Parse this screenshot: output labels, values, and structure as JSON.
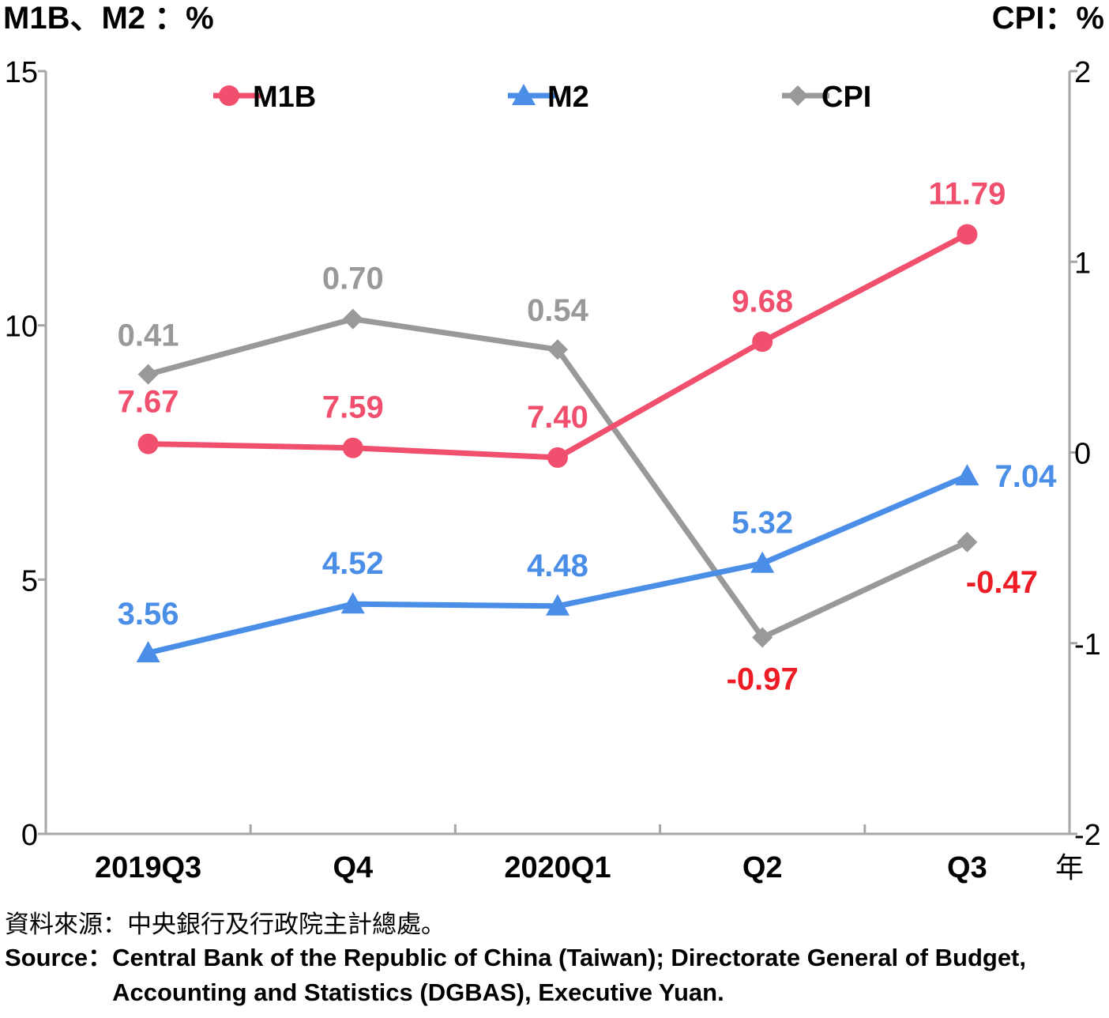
{
  "chart_data": {
    "type": "line",
    "left_axis_title": "M1B、M2 ：%",
    "right_axis_title": "CPI：%",
    "x_unit": "年",
    "categories": [
      "2019Q3",
      "Q4",
      "2020Q1",
      "Q2",
      "Q3"
    ],
    "left_axis": {
      "ylim": [
        0,
        15
      ],
      "ticks": [
        "0",
        "5",
        "10",
        "15"
      ]
    },
    "right_axis": {
      "ylim": [
        -2,
        2
      ],
      "ticks": [
        "-2",
        "-1",
        "0",
        "1",
        "2"
      ]
    },
    "grid": false,
    "legend_placement": "top",
    "series": [
      {
        "name": "M1B",
        "axis": "left",
        "marker": "circle",
        "color": "#f0506e",
        "values": [
          7.67,
          7.59,
          7.4,
          9.68,
          11.79
        ],
        "labels": [
          "7.67",
          "7.59",
          "7.40",
          "9.68",
          "11.79"
        ]
      },
      {
        "name": "M2",
        "axis": "left",
        "marker": "triangle",
        "color": "#4a8ee8",
        "values": [
          3.56,
          4.52,
          4.48,
          5.32,
          7.04
        ],
        "labels": [
          "3.56",
          "4.52",
          "4.48",
          "5.32",
          "7.04"
        ]
      },
      {
        "name": "CPI",
        "axis": "right",
        "marker": "diamond",
        "color": "#999999",
        "values": [
          0.41,
          0.7,
          0.54,
          -0.97,
          -0.47
        ],
        "labels": [
          "0.41",
          "0.70",
          "0.54",
          "-0.97",
          "-0.47"
        ]
      }
    ],
    "negative_label_color": "#ee1c25"
  },
  "source": {
    "cn_prefix": "資料來源：",
    "cn_text": "中央銀行及行政院主計總處。",
    "en_prefix": "Source：",
    "en_text": "Central Bank of the Republic of China (Taiwan); Directorate General of Budget, Accounting and Statistics (DGBAS), Executive Yuan."
  }
}
